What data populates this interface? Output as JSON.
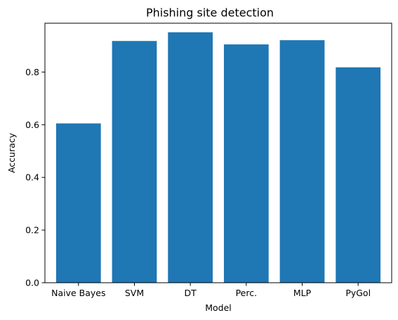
{
  "chart_data": {
    "type": "bar",
    "title": "Phishing site detection",
    "xlabel": "Model",
    "ylabel": "Accuracy",
    "categories": [
      "Naive Bayes",
      "SVM",
      "DT",
      "Perc.",
      "MLP",
      "PyGol"
    ],
    "values": [
      0.605,
      0.918,
      0.951,
      0.905,
      0.921,
      0.818
    ],
    "ylim": [
      0,
      0.9855
    ],
    "yticks": [
      "0.0",
      "0.2",
      "0.4",
      "0.6",
      "0.8"
    ],
    "grid": false,
    "bar_color": "#1f77b4"
  }
}
